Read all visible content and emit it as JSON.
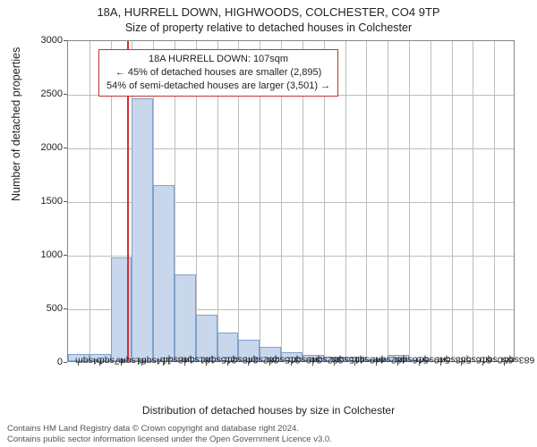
{
  "chart": {
    "type": "histogram",
    "title": "18A, HURRELL DOWN, HIGHWOODS, COLCHESTER, CO4 9TP",
    "subtitle": "Size of property relative to detached houses in Colchester",
    "ylabel": "Number of detached properties",
    "xlabel": "Distribution of detached houses by size in Colchester",
    "background_color": "#ffffff",
    "grid_color": "#bdbdbd",
    "border_color": "#888888",
    "bar_fill": "#c8d7ec",
    "bar_stroke": "#7fa0ce",
    "marker_color": "#d43030",
    "annotation_border": "#c0362c",
    "label_fontsize": 12,
    "tick_fontsize": 11,
    "title_fontsize": 13,
    "ylim": [
      0,
      3000
    ],
    "yticks": [
      0,
      500,
      1000,
      1500,
      2000,
      2500,
      3000
    ],
    "xtick_labels": [
      "14sqm",
      "47sqm",
      "81sqm",
      "114sqm",
      "148sqm",
      "181sqm",
      "215sqm",
      "248sqm",
      "282sqm",
      "315sqm",
      "349sqm",
      "382sqm",
      "415sqm",
      "449sqm",
      "482sqm",
      "516sqm",
      "549sqm",
      "583sqm",
      "616sqm",
      "650sqm",
      "683sqm"
    ],
    "bar_values": [
      70,
      70,
      970,
      2450,
      1640,
      810,
      430,
      270,
      200,
      130,
      80,
      60,
      40,
      40,
      20,
      60,
      20,
      0,
      0,
      0,
      0
    ],
    "marker_value_sqm": 107,
    "marker_bin_index": 2.78,
    "annotation": {
      "line1": "18A HURRELL DOWN: 107sqm",
      "line2": "← 45% of detached houses are smaller (2,895)",
      "line3": "54% of semi-detached houses are larger (3,501) →"
    },
    "footer_line1": "Contains HM Land Registry data © Crown copyright and database right 2024.",
    "footer_line2": "Contains public sector information licensed under the Open Government Licence v3.0."
  }
}
